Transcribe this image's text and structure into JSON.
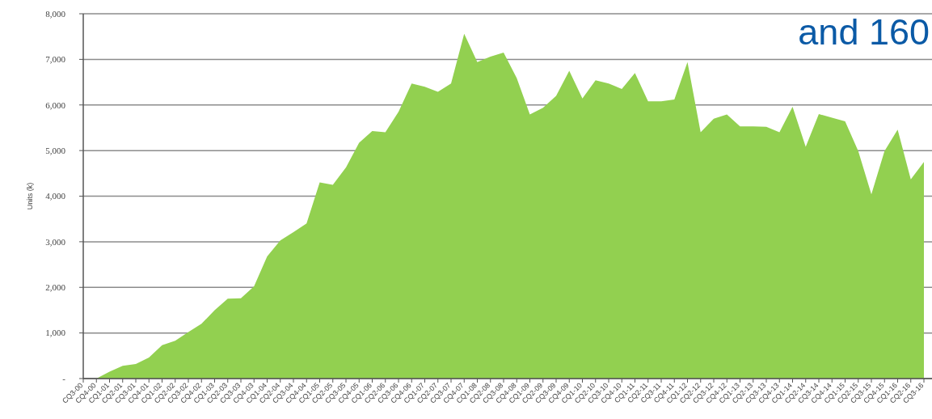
{
  "chart_data": {
    "type": "area",
    "ylabel": "Units (k)",
    "categories": [
      "CQ3-00",
      "CQ4-00",
      "CQ1-01",
      "CQ2-01",
      "CQ3-01",
      "CQ4-01",
      "CQ1-02",
      "CQ2-02",
      "CQ3-02",
      "CQ4-02",
      "CQ1-03",
      "CQ2-03",
      "CQ3-03",
      "CQ4-03",
      "CQ1-04",
      "CQ2-04",
      "CQ3-04",
      "CQ4-04",
      "CQ1-05",
      "CQ2-05",
      "CQ3-05",
      "CQ4-05",
      "CQ1-06",
      "CQ2-06",
      "CQ3-06",
      "CQ4-06",
      "CQ1-07",
      "CQ2-07",
      "CQ3-07",
      "CQ4-07",
      "CQ1-08",
      "CQ2-08",
      "CQ3-08",
      "CQ4-08",
      "CQ1-09",
      "CQ2-09",
      "CQ3-09",
      "CQ4-09",
      "CQ1-10",
      "CQ2-10",
      "CQ3-10",
      "CQ4-10",
      "CQ1-11",
      "CQ2-11",
      "CQ3-11",
      "CQ4-11",
      "CQ1-12",
      "CQ2-12",
      "CQ3-12",
      "CQ4-12",
      "CQ1-13",
      "CQ2-13",
      "CQ3-13",
      "CQ4-13",
      "CQ1-14",
      "CQ2-14",
      "CQ3-14",
      "CQ4-14",
      "CQ1-15",
      "CQ2-15",
      "CQ3-15",
      "CQ4-15",
      "CQ1-16",
      "CQ2-16",
      "CQ3-16"
    ],
    "values": [
      0,
      0,
      150,
      280,
      320,
      460,
      730,
      830,
      1020,
      1200,
      1500,
      1750,
      1760,
      2020,
      2680,
      3030,
      3210,
      3400,
      4300,
      4250,
      4630,
      5170,
      5430,
      5400,
      5850,
      6470,
      6400,
      6290,
      6470,
      7560,
      6940,
      7060,
      7150,
      6590,
      5790,
      5940,
      6200,
      6750,
      6140,
      6540,
      6470,
      6350,
      6700,
      6080,
      6080,
      6120,
      6940,
      5400,
      5700,
      5790,
      5530,
      5530,
      5520,
      5400,
      5960,
      5080,
      5800,
      5720,
      5640,
      4990,
      4040,
      4990,
      5460,
      4370,
      4750
    ],
    "color": "#92d050",
    "ylim": [
      0,
      8000
    ],
    "yticks": [
      {
        "value": 0,
        "label": "-"
      },
      {
        "value": 1000,
        "label": "1,000"
      },
      {
        "value": 2000,
        "label": "2,000"
      },
      {
        "value": 3000,
        "label": "3,000"
      },
      {
        "value": 4000,
        "label": "4,000"
      },
      {
        "value": 5000,
        "label": "5,000"
      },
      {
        "value": 6000,
        "label": "6,000"
      },
      {
        "value": 7000,
        "label": "7,000"
      },
      {
        "value": 8000,
        "label": "8,000"
      }
    ],
    "grid": "y",
    "annotations": [
      "and 160"
    ]
  }
}
